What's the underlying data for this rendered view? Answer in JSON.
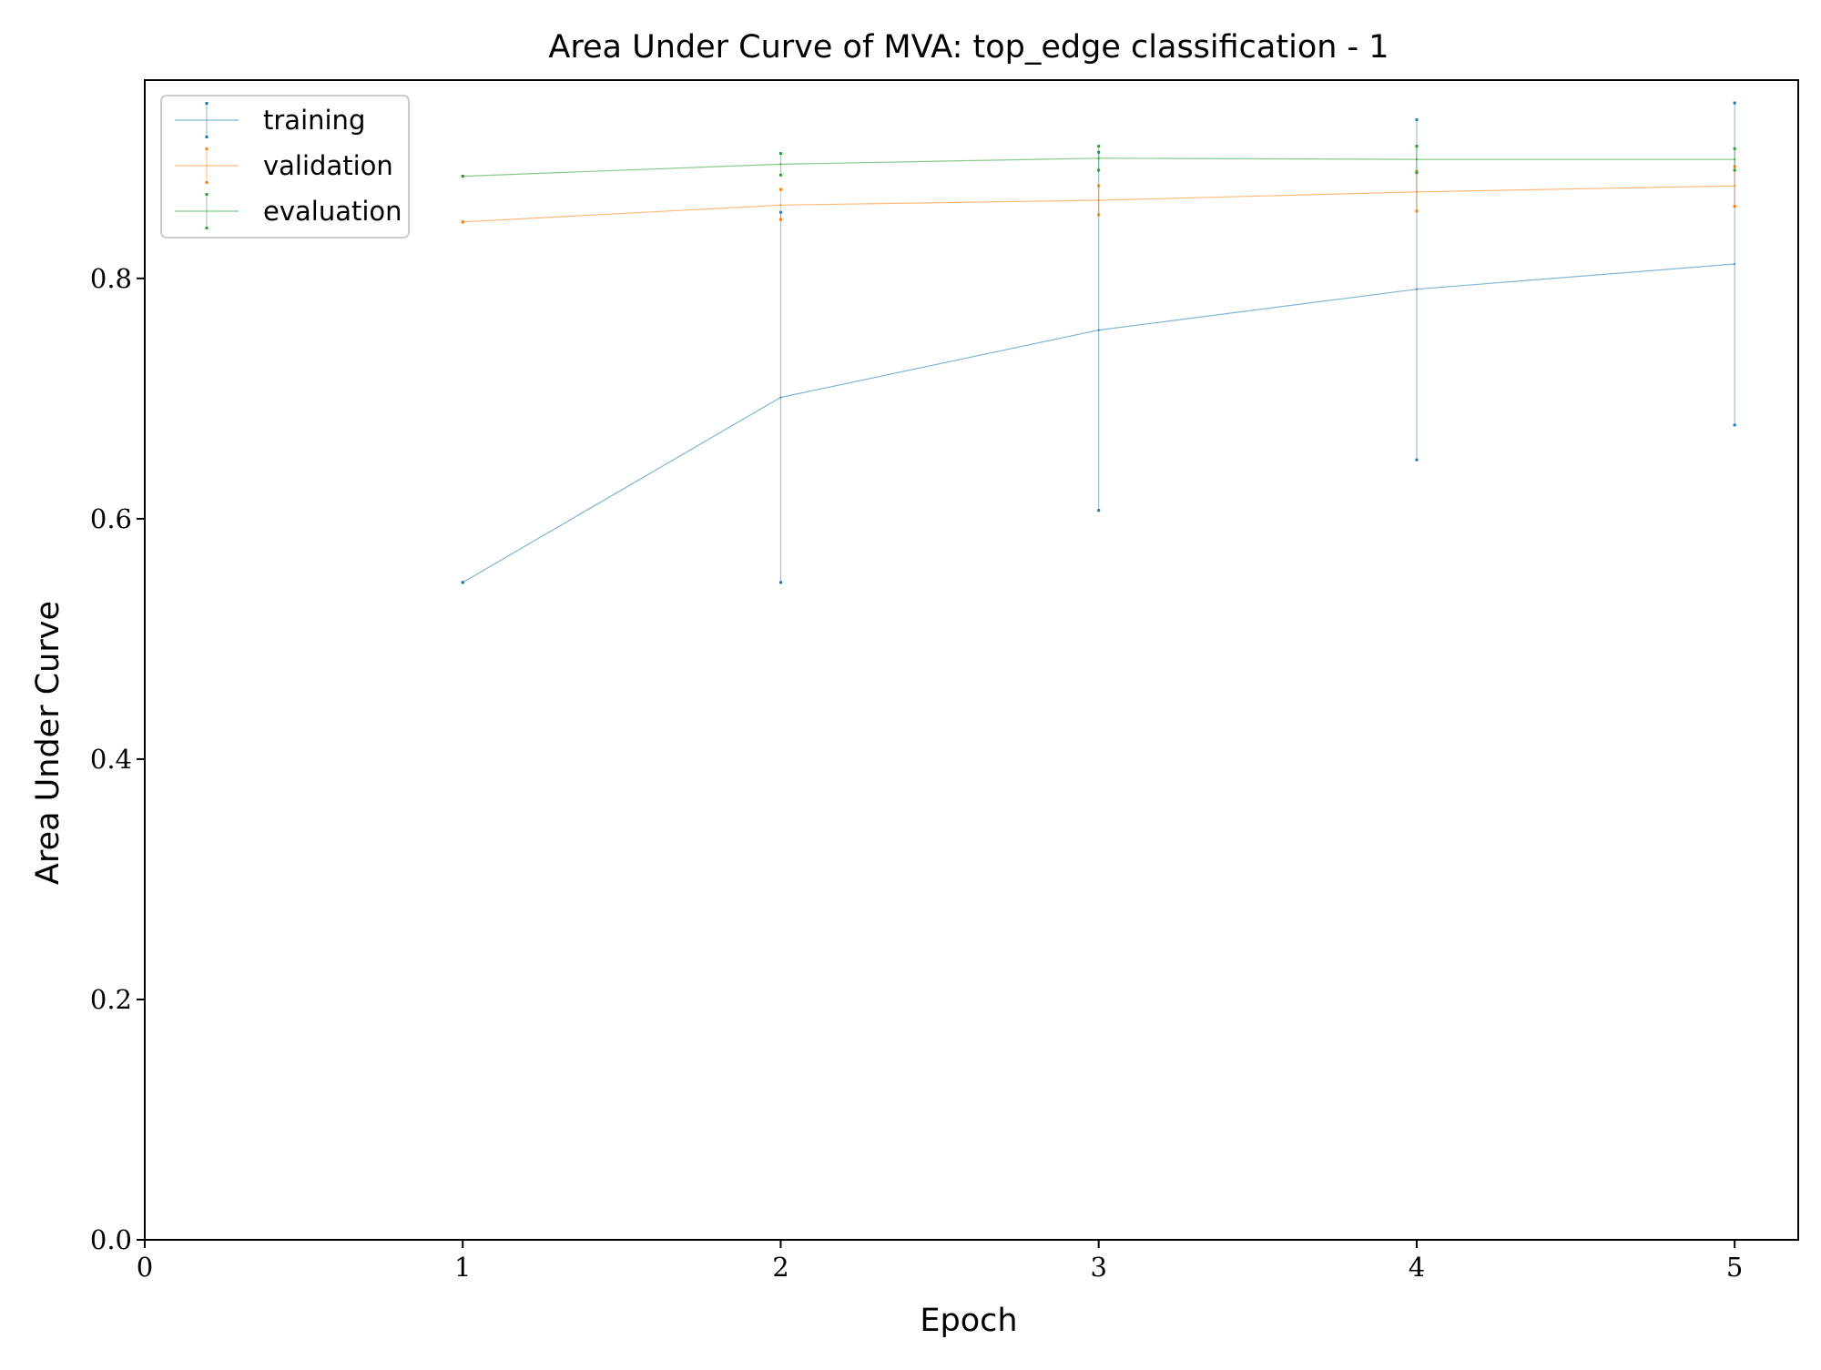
{
  "colors": {
    "training": "#1f77b4",
    "validation": "#ff7f0e",
    "evaluation": "#2ca02c",
    "axes": "#000000",
    "background": "#ffffff"
  },
  "chart_data": {
    "type": "line",
    "title": "Area Under Curve of MVA: top_edge classification - 1",
    "xlabel": "Epoch",
    "ylabel": "Area Under Curve",
    "xlim": [
      0,
      5.2
    ],
    "ylim": [
      0.0,
      0.965
    ],
    "xticks": [
      0,
      1,
      2,
      3,
      4,
      5
    ],
    "xtick_labels": [
      "0",
      "1",
      "2",
      "3",
      "4",
      "5"
    ],
    "yticks": [
      0.0,
      0.2,
      0.4,
      0.6,
      0.8
    ],
    "ytick_labels": [
      "0.0",
      "0.2",
      "0.4",
      "0.6",
      "0.8"
    ],
    "grid": false,
    "legend_position": "top-left",
    "x": [
      1,
      2,
      3,
      4,
      5
    ],
    "series": [
      {
        "name": "training",
        "color": "#1f77b4",
        "values": [
          0.547,
          0.701,
          0.757,
          0.791,
          0.812
        ],
        "error_low": [
          0.547,
          0.547,
          0.607,
          0.649,
          0.678
        ],
        "error_high": [
          0.547,
          0.855,
          0.905,
          0.932,
          0.946
        ]
      },
      {
        "name": "validation",
        "color": "#ff7f0e",
        "values": [
          0.847,
          0.861,
          0.865,
          0.872,
          0.877
        ],
        "error_low": [
          0.847,
          0.849,
          0.853,
          0.856,
          0.86
        ],
        "error_high": [
          0.847,
          0.874,
          0.877,
          0.889,
          0.893
        ]
      },
      {
        "name": "evaluation",
        "color": "#2ca02c",
        "values": [
          0.885,
          0.895,
          0.9,
          0.899,
          0.899
        ],
        "error_low": [
          0.885,
          0.886,
          0.89,
          0.888,
          0.89
        ],
        "error_high": [
          0.885,
          0.904,
          0.91,
          0.91,
          0.908
        ]
      }
    ]
  }
}
